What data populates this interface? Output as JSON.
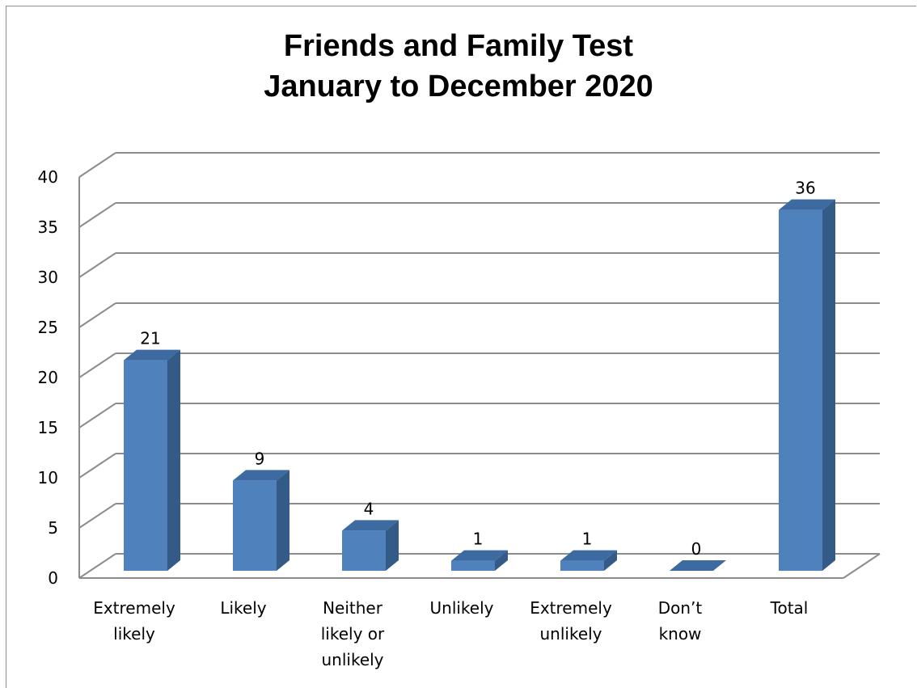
{
  "chart_data": {
    "type": "bar",
    "title_lines": [
      "Friends and Family Test",
      "January to December 2020"
    ],
    "categories": [
      [
        "Extremely",
        "likely"
      ],
      [
        "Likely"
      ],
      [
        "Neither",
        "likely or",
        "unlikely"
      ],
      [
        "Unlikely"
      ],
      [
        "Extremely",
        "unlikely"
      ],
      [
        "Don’t",
        "know"
      ],
      [
        "Total"
      ]
    ],
    "values": [
      21,
      9,
      4,
      1,
      1,
      0,
      36
    ],
    "ylim": [
      0,
      40
    ],
    "yticks": [
      0,
      5,
      10,
      15,
      20,
      25,
      30,
      35,
      40
    ],
    "grid": true,
    "legend": "none",
    "colors": {
      "bar_front": "#4f81bd",
      "bar_side": "#345a87",
      "bar_top": "#3d6aa0",
      "grid": "#8c8c8c"
    }
  }
}
